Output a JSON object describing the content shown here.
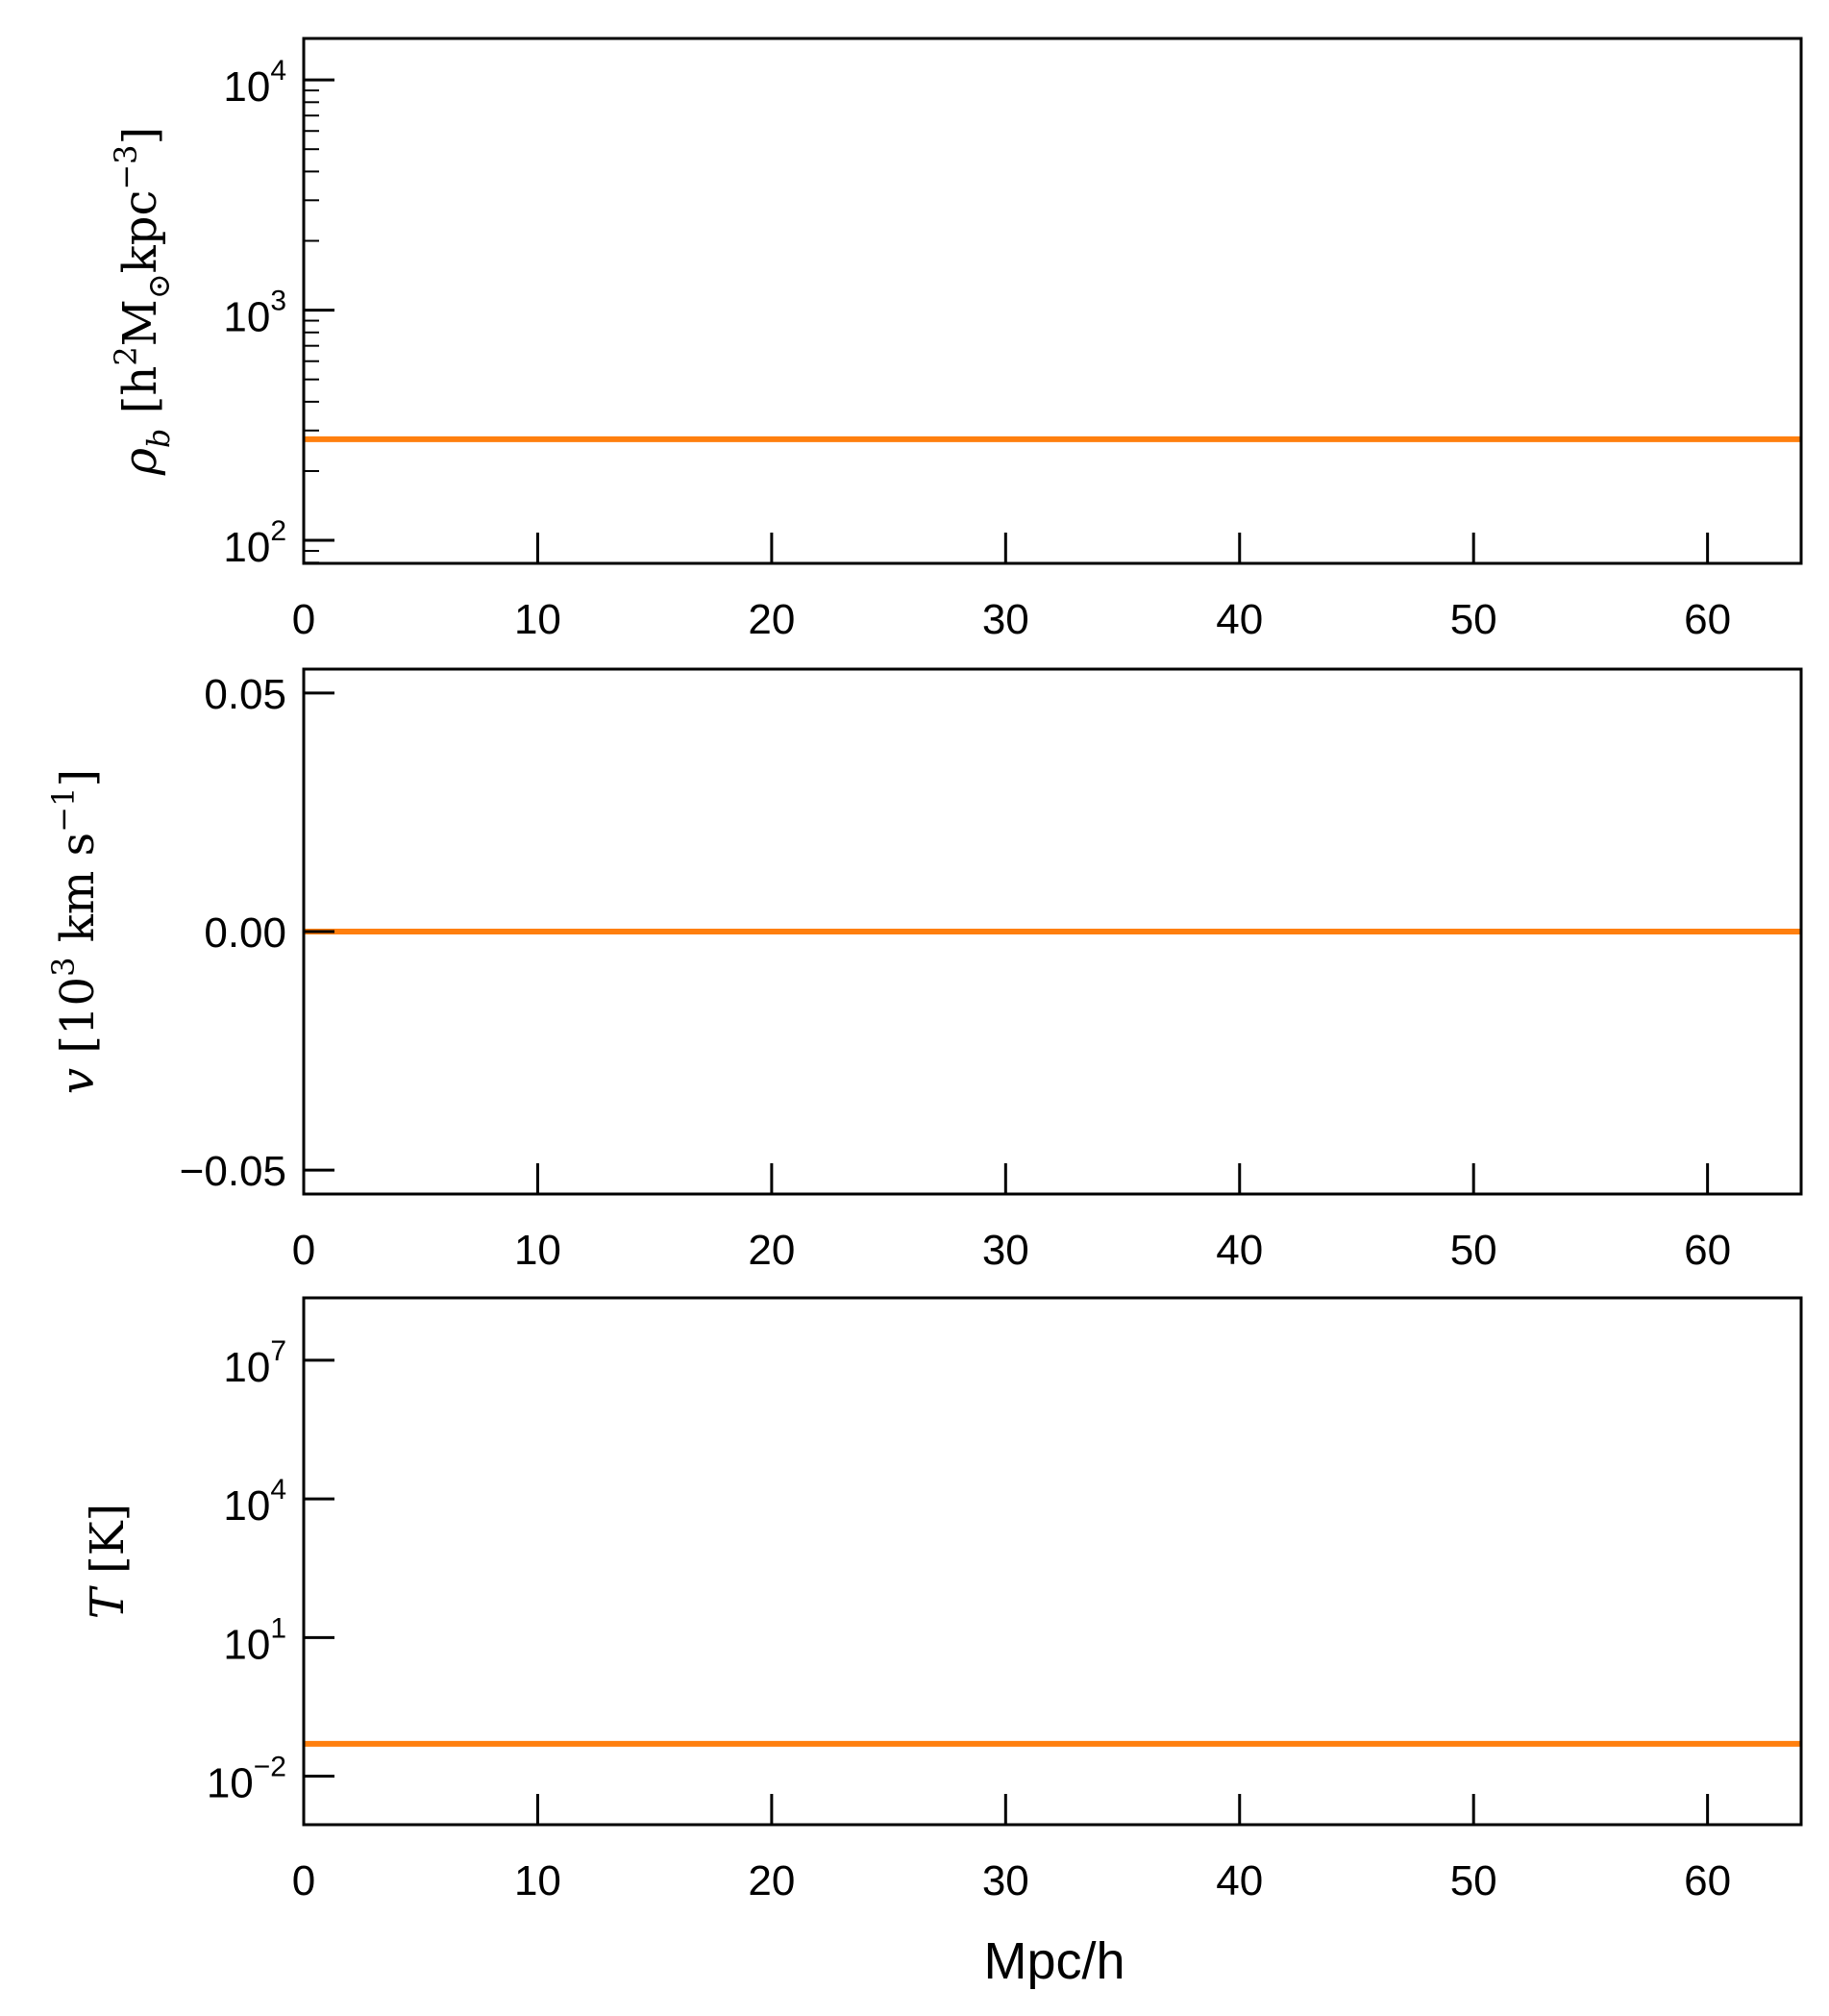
{
  "chart_data": [
    {
      "type": "line",
      "scale": "log",
      "ylabel": {
        "sym": "ρ",
        "sub": "b",
        "unit_a": " [h",
        "sup1": "2",
        "unit_b": "M",
        "sub2": "⊙",
        "unit_c": "kpc",
        "sup3": "−3",
        "unit_d": "]"
      },
      "xlim": [
        0,
        64
      ],
      "ylim_log10": [
        1.9,
        4.18
      ],
      "xticks": [
        0,
        10,
        20,
        30,
        40,
        50,
        60
      ],
      "xtick_labels": [
        "0",
        "10",
        "20",
        "30",
        "40",
        "50",
        "60"
      ],
      "yticks": [
        {
          "base": "10",
          "exp": "2",
          "log": 2
        },
        {
          "base": "10",
          "exp": "3",
          "log": 3
        },
        {
          "base": "10",
          "exp": "4",
          "log": 4
        }
      ],
      "minor_ticks": true,
      "series": [
        {
          "x": [
            0,
            64
          ],
          "y": [
            275,
            275
          ],
          "color": "#ff7f0e"
        }
      ]
    },
    {
      "type": "line",
      "scale": "linear",
      "ylabel": {
        "sym": "v",
        "unit_a": " [10",
        "sup1": "3",
        "unit_b": " km s",
        "sup3": "−1",
        "unit_d": "]"
      },
      "xlim": [
        0,
        64
      ],
      "ylim": [
        -0.055,
        0.055
      ],
      "xticks": [
        0,
        10,
        20,
        30,
        40,
        50,
        60
      ],
      "xtick_labels": [
        "0",
        "10",
        "20",
        "30",
        "40",
        "50",
        "60"
      ],
      "yticks": [
        {
          "label": "−0.05",
          "v": -0.05
        },
        {
          "label": "0.00",
          "v": 0
        },
        {
          "label": "0.05",
          "v": 0.05
        }
      ],
      "series": [
        {
          "x": [
            0,
            64
          ],
          "y": [
            0,
            0
          ],
          "color": "#ff7f0e"
        }
      ]
    },
    {
      "type": "line",
      "scale": "log",
      "ylabel": {
        "sym": "T",
        "unit_a": " [K]"
      },
      "xlim": [
        0,
        64
      ],
      "ylim_log10": [
        -3.05,
        8.35
      ],
      "xticks": [
        0,
        10,
        20,
        30,
        40,
        50,
        60
      ],
      "xtick_labels": [
        "0",
        "10",
        "20",
        "30",
        "40",
        "50",
        "60"
      ],
      "yticks": [
        {
          "base": "10",
          "exp": "−2",
          "log": -2
        },
        {
          "base": "10",
          "exp": "1",
          "log": 1
        },
        {
          "base": "10",
          "exp": "4",
          "log": 4
        },
        {
          "base": "10",
          "exp": "7",
          "log": 7
        }
      ],
      "series": [
        {
          "x": [
            0,
            64
          ],
          "y": [
            0.05,
            0.05
          ],
          "color": "#ff7f0e"
        }
      ]
    }
  ],
  "xlabel": "Mpc/h"
}
